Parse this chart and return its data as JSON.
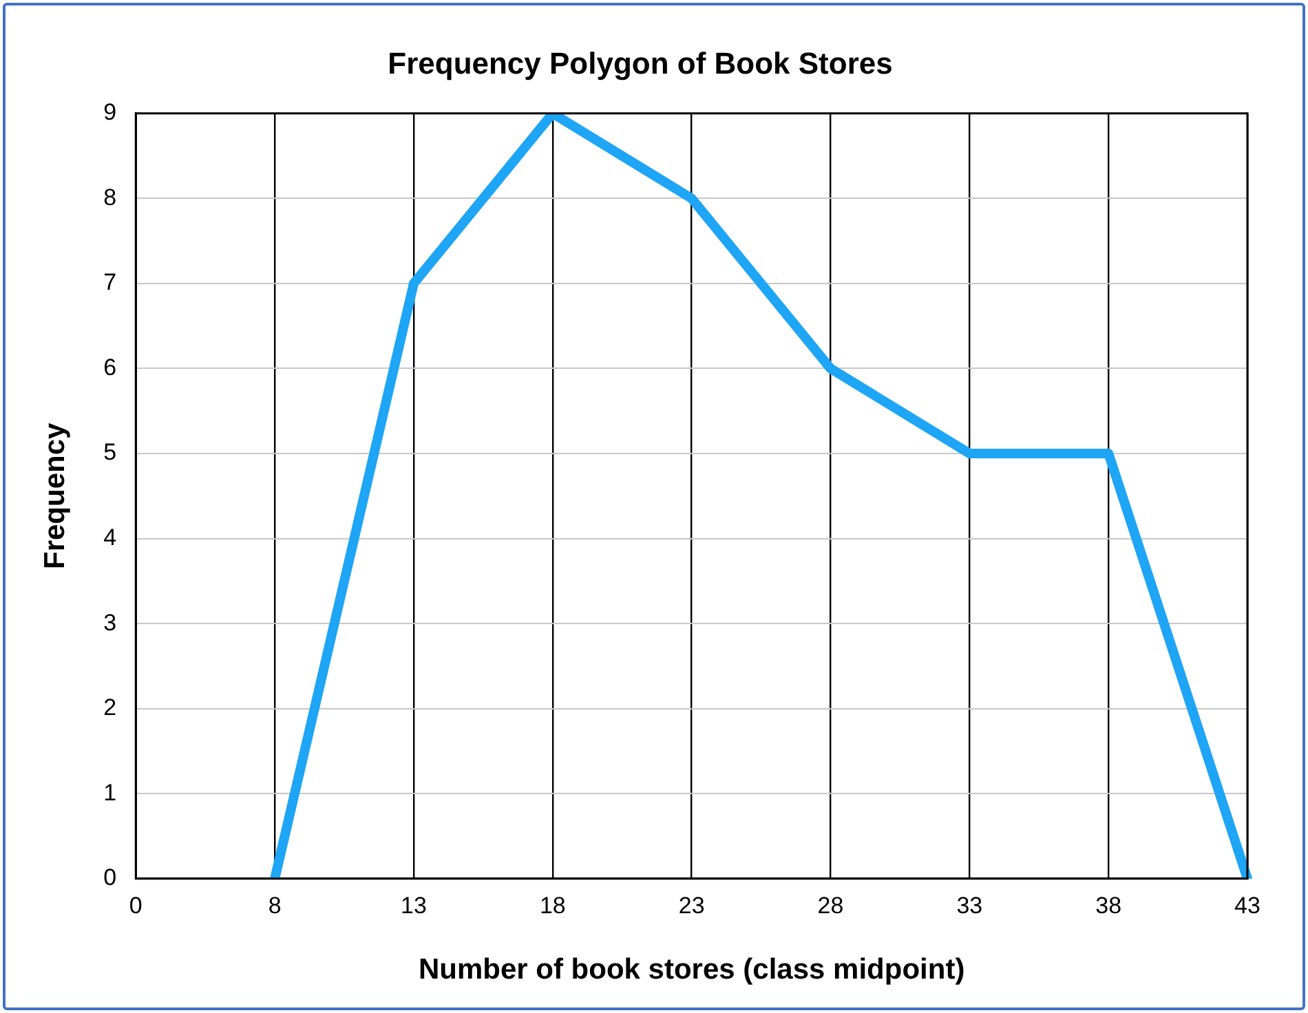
{
  "chart_data": {
    "type": "line",
    "title": "Frequency Polygon of Book Stores",
    "xlabel": "Number of book stores (class midpoint)",
    "ylabel": "Frequency",
    "categories": [
      "0",
      "8",
      "13",
      "18",
      "23",
      "28",
      "33",
      "38",
      "43"
    ],
    "series": [
      {
        "color": "#1ea5f5",
        "values": [
          null,
          0,
          7,
          9,
          8,
          6,
          5,
          5,
          0
        ]
      }
    ],
    "ylim": [
      0,
      9
    ],
    "yticks": [
      0,
      1,
      2,
      3,
      4,
      5,
      6,
      7,
      8,
      9
    ],
    "grid": true,
    "legend": false,
    "marker": "none",
    "line_style": "solid"
  }
}
